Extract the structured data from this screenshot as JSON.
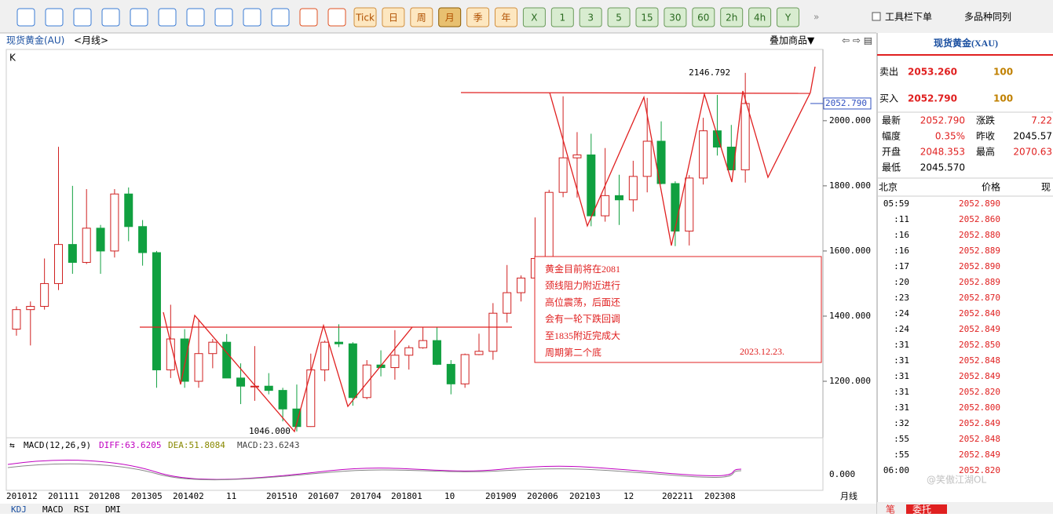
{
  "toolbar": {
    "periods": [
      "Tick",
      "日",
      "周",
      "月",
      "季",
      "年",
      "X",
      "1",
      "3",
      "5",
      "15",
      "30",
      "60",
      "2h",
      "4h",
      "Y"
    ],
    "selected": "月",
    "order_toolbar": "工具栏下单",
    "multi": "多品种同列"
  },
  "header": {
    "symbol": "现货黄金(AU)",
    "period": "<月线>",
    "overlay": "叠加商品▼",
    "k": "K"
  },
  "chart_data": {
    "type": "candlestick",
    "ylim": [
      1029,
      2214
    ],
    "yticks": [
      {
        "value": 2000,
        "label": "2000.000"
      },
      {
        "value": 1800,
        "label": "1800.000"
      },
      {
        "value": 1600,
        "label": "1600.000"
      },
      {
        "value": 1400,
        "label": "1400.000"
      },
      {
        "value": 1200,
        "label": "1200.000"
      }
    ],
    "last_price": {
      "value": 2052.79,
      "label": "2052.790"
    },
    "high_mark": 2146.792,
    "low_mark": {
      "value": 1046,
      "label": "1046.000"
    },
    "x_labels": [
      "201012",
      "201111",
      "201208",
      "201305",
      "201402",
      "11",
      "201510",
      "201607",
      "201704",
      "201801",
      "10",
      "201909",
      "202006",
      "202103",
      "12",
      "202211",
      "202308",
      "月线"
    ],
    "candles": [
      [
        1360,
        1430,
        1340,
        1420
      ],
      [
        1420,
        1445,
        1310,
        1430
      ],
      [
        1430,
        1577,
        1420,
        1500
      ],
      [
        1500,
        1920,
        1480,
        1620
      ],
      [
        1620,
        1800,
        1530,
        1565
      ],
      [
        1565,
        1790,
        1560,
        1670
      ],
      [
        1670,
        1680,
        1530,
        1600
      ],
      [
        1600,
        1790,
        1580,
        1775
      ],
      [
        1775,
        1795,
        1630,
        1675
      ],
      [
        1675,
        1695,
        1555,
        1595
      ],
      [
        1595,
        1600,
        1180,
        1235
      ],
      [
        1235,
        1435,
        1210,
        1330
      ],
      [
        1330,
        1360,
        1180,
        1200
      ],
      [
        1200,
        1390,
        1180,
        1285
      ],
      [
        1285,
        1330,
        1240,
        1320
      ],
      [
        1320,
        1345,
        1210,
        1210
      ],
      [
        1210,
        1255,
        1130,
        1185
      ],
      [
        1185,
        1308,
        1140,
        1185
      ],
      [
        1185,
        1225,
        1160,
        1172
      ],
      [
        1172,
        1180,
        1077,
        1115
      ],
      [
        1115,
        1190,
        1046,
        1061
      ],
      [
        1061,
        1285,
        1060,
        1235
      ],
      [
        1235,
        1325,
        1200,
        1320
      ],
      [
        1320,
        1375,
        1305,
        1315
      ],
      [
        1315,
        1320,
        1125,
        1150
      ],
      [
        1150,
        1265,
        1145,
        1250
      ],
      [
        1250,
        1295,
        1215,
        1242
      ],
      [
        1242,
        1357,
        1205,
        1280
      ],
      [
        1280,
        1310,
        1236,
        1303
      ],
      [
        1303,
        1365,
        1300,
        1325
      ],
      [
        1325,
        1365,
        1250,
        1252
      ],
      [
        1252,
        1265,
        1160,
        1192
      ],
      [
        1192,
        1285,
        1180,
        1282
      ],
      [
        1282,
        1346,
        1280,
        1292
      ],
      [
        1292,
        1440,
        1266,
        1409
      ],
      [
        1409,
        1557,
        1380,
        1472
      ],
      [
        1472,
        1525,
        1445,
        1517
      ],
      [
        1517,
        1703,
        1451,
        1577
      ],
      [
        1577,
        1788,
        1566,
        1780
      ],
      [
        1780,
        2075,
        1765,
        1886
      ],
      [
        1886,
        1965,
        1764,
        1895
      ],
      [
        1895,
        1960,
        1676,
        1708
      ],
      [
        1708,
        1916,
        1690,
        1770
      ],
      [
        1770,
        1834,
        1680,
        1757
      ],
      [
        1757,
        1877,
        1721,
        1829
      ],
      [
        1829,
        2070,
        1780,
        1937
      ],
      [
        1937,
        1998,
        1805,
        1807
      ],
      [
        1807,
        1814,
        1615,
        1661
      ],
      [
        1661,
        1833,
        1617,
        1824
      ],
      [
        1824,
        2009,
        1804,
        1969
      ],
      [
        1969,
        2079,
        1893,
        1919
      ],
      [
        1919,
        1987,
        1848,
        1849
      ],
      [
        1849,
        2146.792,
        1810,
        2052.79
      ]
    ],
    "note": [
      "黄金目前将在2081",
      "颈线阻力附近进行",
      "高位震荡，后面还",
      "会有一轮下跌回调",
      "至1835附近完成大",
      "周期第二个底"
    ],
    "note_date": "2023.12.23."
  },
  "macd": {
    "title": "MACD(12,26,9)",
    "diff": "DIFF:63.6205",
    "dea": "DEA:51.8084",
    "macd": "MACD:23.6243",
    "tick": "0.000"
  },
  "tabs": [
    "KDJ",
    "MACD",
    "RSI",
    "DMI"
  ],
  "quote": {
    "title": "现货黄金(XAU)",
    "sell_label": "卖出",
    "sell": "2053.260",
    "sell_vol": "100",
    "buy_label": "买入",
    "buy": "2052.790",
    "buy_vol": "100",
    "fields": [
      [
        "最新",
        "2052.790",
        "涨跌",
        "7.22"
      ],
      [
        "幅度",
        "0.35%",
        "昨收",
        "2045.57"
      ],
      [
        "开盘",
        "2048.353",
        "最高",
        "2070.63"
      ],
      [
        "最低",
        "2045.570"
      ]
    ]
  },
  "ticks": {
    "header": [
      "北京",
      "价格",
      "现"
    ],
    "times": [
      "05:59",
      ":11",
      ":16",
      ":16",
      ":17",
      ":20",
      ":23",
      ":24",
      ":24",
      ":31",
      ":31",
      ":31",
      ":31",
      ":31",
      ":32",
      ":55",
      ":55",
      "06:00"
    ],
    "prices": [
      "2052.890",
      "2052.860",
      "2052.880",
      "2052.889",
      "2052.890",
      "2052.889",
      "2052.870",
      "2052.840",
      "2052.849",
      "2052.850",
      "2052.848",
      "2052.849",
      "2052.820",
      "2052.800",
      "2052.849",
      "2052.848",
      "2052.849",
      "2052.820"
    ]
  },
  "bottom_tabs": [
    "笔",
    "委托"
  ],
  "watermark": "@笑傲江湖OL"
}
